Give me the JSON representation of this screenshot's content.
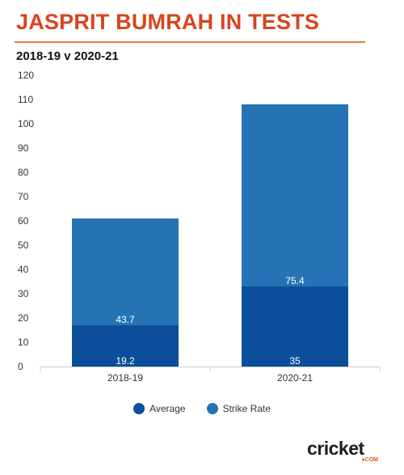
{
  "header": {
    "title": "JASPRIT BUMRAH IN TESTS",
    "subtitle": "2018-19 v 2020-21"
  },
  "colors": {
    "title": "#d9441c",
    "average": "#0b4f9a",
    "strike_rate": "#2573b5"
  },
  "logo": {
    "text": "cricket",
    "sub": "●COM"
  },
  "chart_data": {
    "type": "bar",
    "stacked": true,
    "categories": [
      "2018-19",
      "2020-21"
    ],
    "series": [
      {
        "name": "Average",
        "values": [
          19.2,
          35
        ],
        "labels": [
          "19.2",
          "35"
        ],
        "bar_heights": [
          17,
          33
        ],
        "color": "#0b4f9a"
      },
      {
        "name": "Strike Rate",
        "values": [
          43.7,
          75.4
        ],
        "labels": [
          "43.7",
          "75.4"
        ],
        "bar_heights": [
          44,
          75
        ],
        "color": "#2573b5"
      }
    ],
    "yticks": [
      0,
      10,
      20,
      30,
      40,
      50,
      60,
      70,
      80,
      90,
      100,
      110,
      120
    ],
    "ylim": [
      0,
      120
    ],
    "legend_position": "bottom",
    "grid": false
  }
}
